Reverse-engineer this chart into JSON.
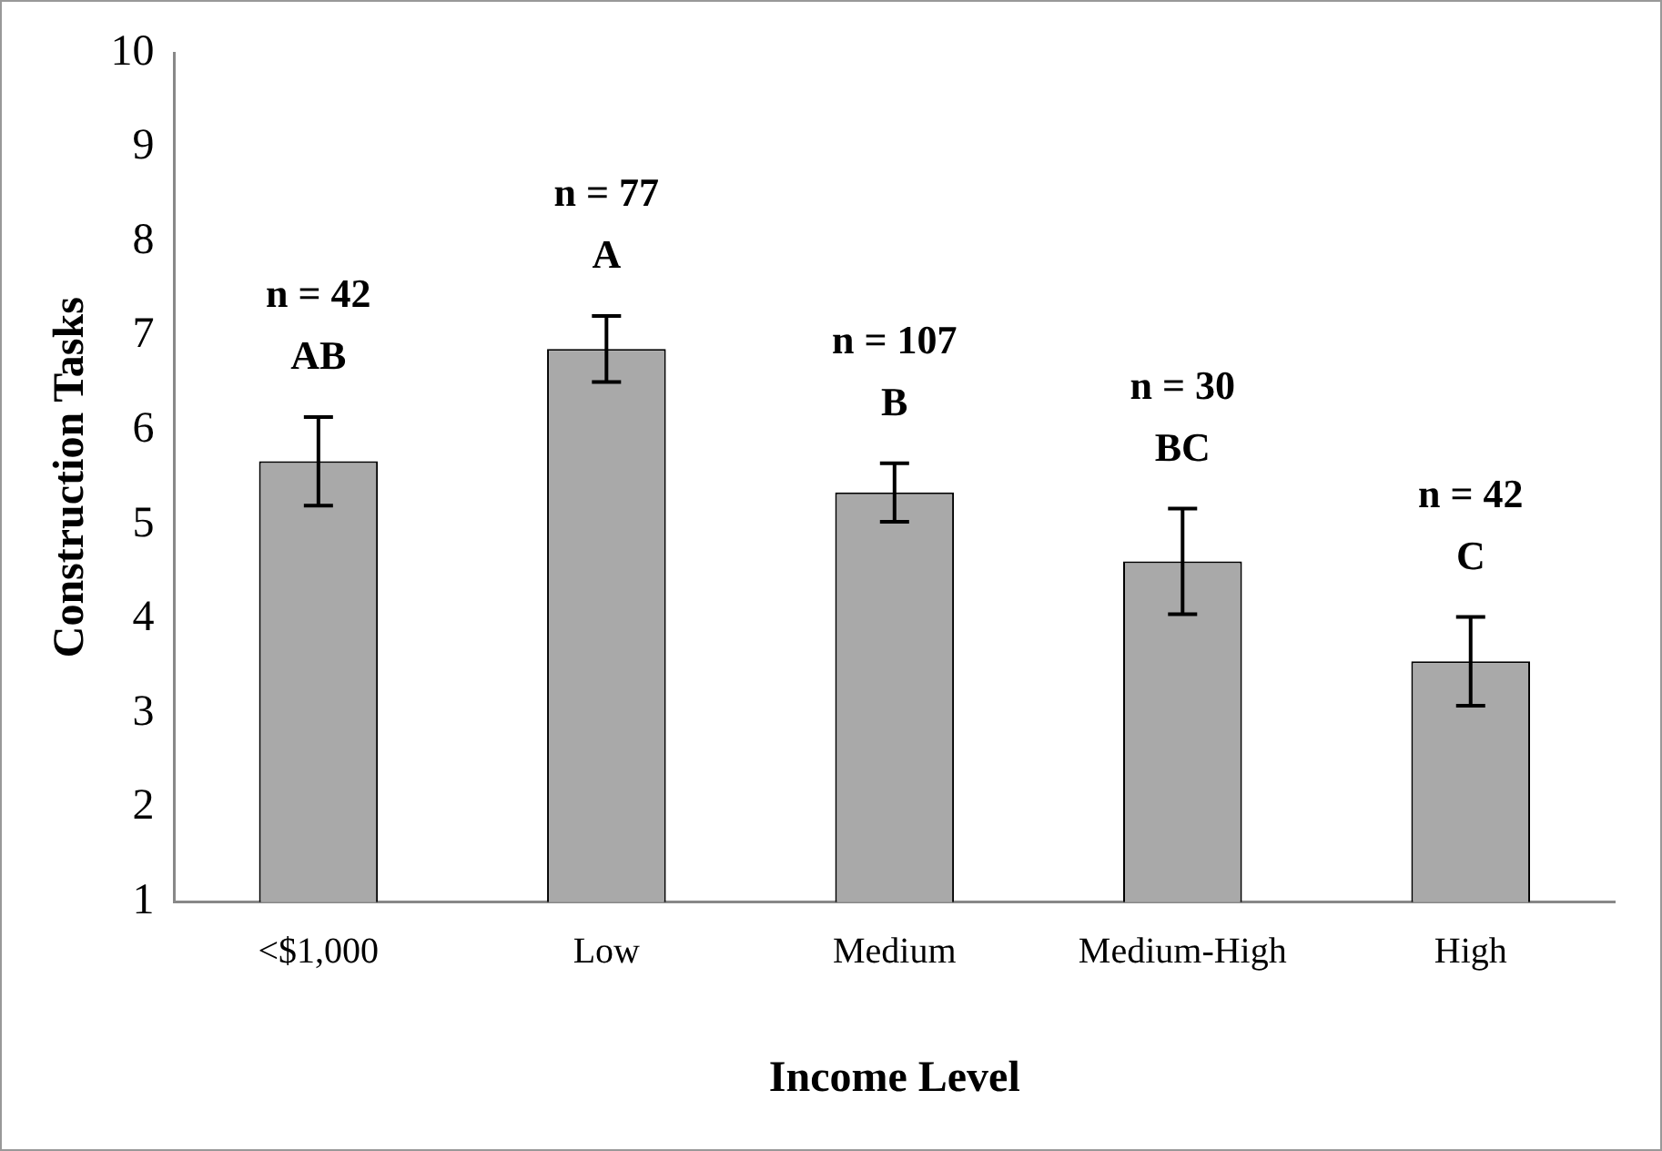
{
  "chart_data": {
    "type": "bar",
    "xlabel": "Income Level",
    "ylabel": "Construction Tasks",
    "categories": [
      "<$1,000",
      "Low",
      "Medium",
      "Medium-High",
      "High"
    ],
    "values": [
      5.67,
      6.86,
      5.34,
      4.61,
      3.55
    ],
    "errors": [
      0.47,
      0.35,
      0.31,
      0.56,
      0.47
    ],
    "color": "#a9a9a9",
    "ylim": [
      1,
      10
    ],
    "yticks": [
      1,
      2,
      3,
      4,
      5,
      6,
      7,
      8,
      9,
      10
    ],
    "grid": false,
    "legend": false,
    "annotations": [
      "n = 42",
      "AB",
      "n = 77",
      "A",
      "n = 107",
      "B",
      "n = 30",
      "BC",
      "n = 42",
      "C"
    ]
  }
}
